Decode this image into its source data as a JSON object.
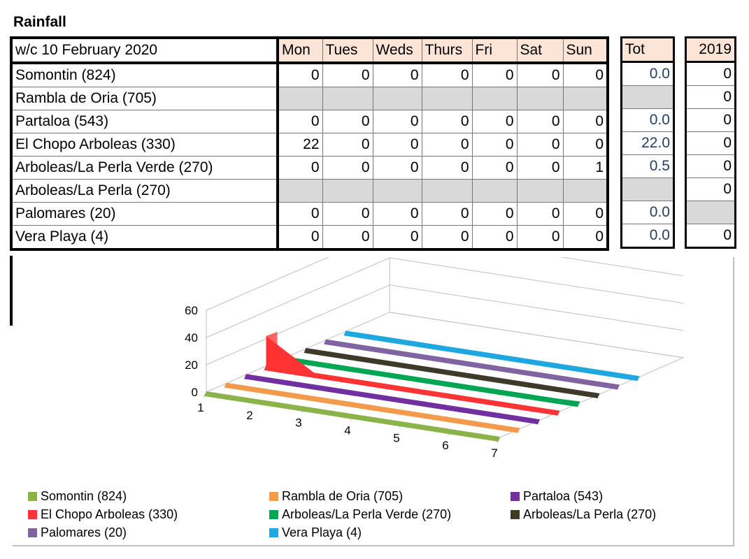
{
  "title": "Rainfall",
  "week_label": "w/c 10 February 2020",
  "days": [
    "Mon",
    "Tues",
    "Weds",
    "Thurs",
    "Fri",
    "Sat",
    "Sun"
  ],
  "tot_header": "Tot",
  "prev_year_header": "2019",
  "rows": [
    {
      "station": "Somontin (824)",
      "values": [
        "0",
        "0",
        "0",
        "0",
        "0",
        "0",
        "0"
      ],
      "tot": "0.0",
      "prev": "0"
    },
    {
      "station": "Rambla de Oria (705)",
      "values": [
        "",
        "",
        "",
        "",
        "",
        "",
        ""
      ],
      "tot": "",
      "prev": "0"
    },
    {
      "station": "Partaloa (543)",
      "values": [
        "0",
        "0",
        "0",
        "0",
        "0",
        "0",
        "0"
      ],
      "tot": "0.0",
      "prev": "0"
    },
    {
      "station": "El Chopo Arboleas (330)",
      "values": [
        "22",
        "0",
        "0",
        "0",
        "0",
        "0",
        "0"
      ],
      "tot": "22.0",
      "prev": "0"
    },
    {
      "station": "Arboleas/La Perla Verde (270)",
      "values": [
        "0",
        "0",
        "0",
        "0",
        "0",
        "0",
        "1"
      ],
      "tot": "0.5",
      "prev": "0"
    },
    {
      "station": "Arboleas/La Perla (270)",
      "values": [
        "",
        "",
        "",
        "",
        "",
        "",
        ""
      ],
      "tot": "",
      "prev": "0"
    },
    {
      "station": "Palomares (20)",
      "values": [
        "0",
        "0",
        "0",
        "0",
        "0",
        "0",
        "0"
      ],
      "tot": "0.0",
      "prev": ""
    },
    {
      "station": "Vera Playa (4)",
      "values": [
        "0",
        "0",
        "0",
        "0",
        "0",
        "0",
        "0"
      ],
      "tot": "0.0",
      "prev": "0"
    }
  ],
  "gray_rows": [
    1,
    5
  ],
  "gray_prev_rows": [
    6
  ],
  "chart_data": {
    "type": "area",
    "three_d": true,
    "categories": [
      "1",
      "2",
      "3",
      "4",
      "5",
      "6",
      "7"
    ],
    "yticks": [
      "0",
      "20",
      "40",
      "60"
    ],
    "ylim": [
      0,
      60
    ],
    "legend_position": "bottom",
    "series": [
      {
        "name": "Somontin (824)",
        "color": "#8cb34a",
        "values": [
          0,
          0,
          0,
          0,
          0,
          0,
          0
        ]
      },
      {
        "name": "Rambla de Oria (705)",
        "color": "#f39a4c",
        "values": [
          0,
          0,
          0,
          0,
          0,
          0,
          0
        ]
      },
      {
        "name": "Partaloa (543)",
        "color": "#7030a0",
        "values": [
          0,
          0,
          0,
          0,
          0,
          0,
          0
        ]
      },
      {
        "name": "El Chopo Arboleas (330)",
        "color": "#ff3333",
        "values": [
          22,
          0,
          0,
          0,
          0,
          0,
          0
        ]
      },
      {
        "name": "Arboleas/La Perla Verde (270)",
        "color": "#00a651",
        "values": [
          0,
          0,
          0,
          0,
          0,
          0,
          1
        ]
      },
      {
        "name": "Arboleas/La Perla (270)",
        "color": "#3d3a2a",
        "values": [
          0,
          0,
          0,
          0,
          0,
          0,
          0
        ]
      },
      {
        "name": "Palomares (20)",
        "color": "#8064a2",
        "values": [
          0,
          0,
          0,
          0,
          0,
          0,
          0
        ]
      },
      {
        "name": "Vera Playa (4)",
        "color": "#1fa7e0",
        "values": [
          0,
          0,
          0,
          0,
          0,
          0,
          0
        ]
      }
    ]
  }
}
